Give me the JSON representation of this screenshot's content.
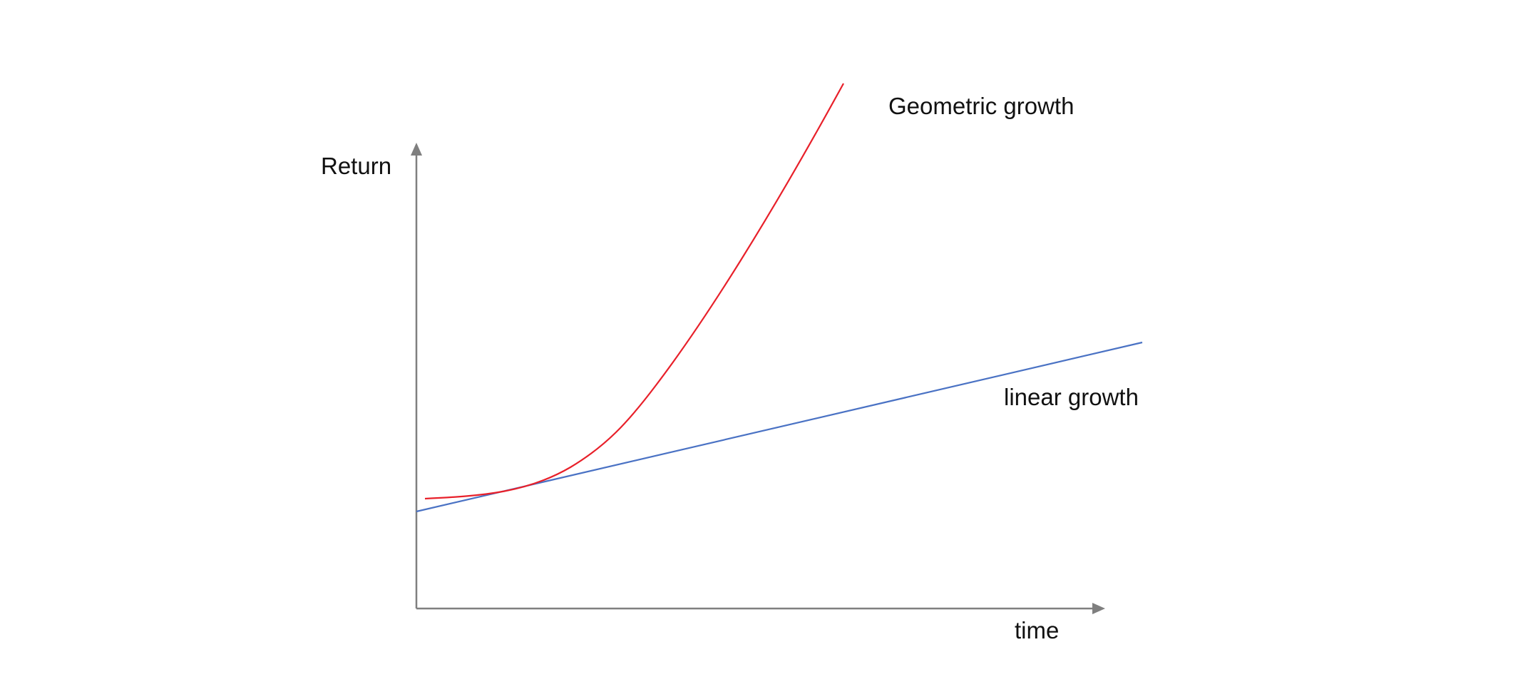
{
  "diagram": {
    "y_axis_label": "Return",
    "x_axis_label": "time",
    "curves": {
      "geometric": {
        "label": "Geometric growth",
        "color": "#e8202a"
      },
      "linear": {
        "label": "linear growth",
        "color": "#4a72c4"
      }
    },
    "axis_color": "#7f7f7f"
  }
}
